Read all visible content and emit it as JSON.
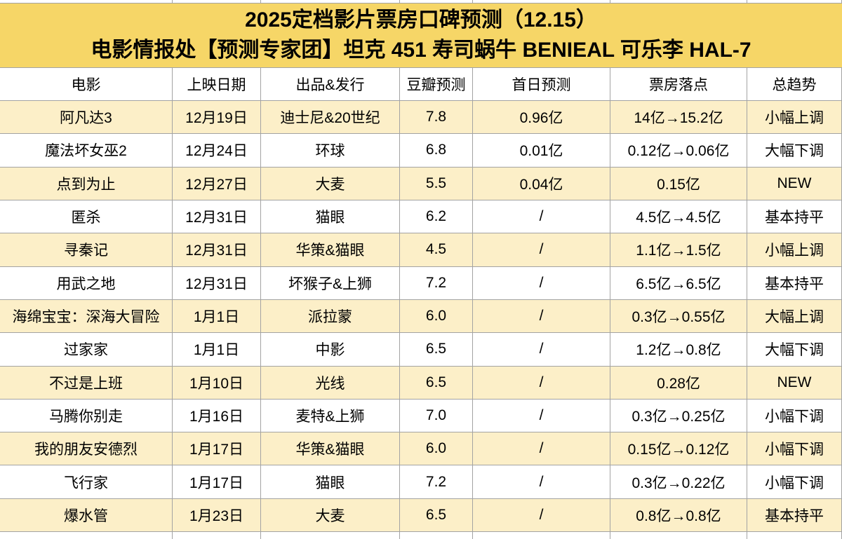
{
  "banner": {
    "title": "2025定档影片票房口碑预测（12.15）",
    "subtitle": "电影情报处【预测专家团】坦克 451 寿司蜗牛 BENIEAL 可乐李 HAL-7"
  },
  "table": {
    "columns": [
      "电影",
      "上映日期",
      "出品&发行",
      "豆瓣预测",
      "首日预测",
      "票房落点",
      "总趋势"
    ],
    "column_keys": [
      "movie",
      "release-date",
      "producer-distributor",
      "douban-forecast",
      "first-day-forecast",
      "box-office-landing",
      "overall-trend"
    ],
    "rows": [
      [
        "阿凡达3",
        "12月19日",
        "迪士尼&20世纪",
        "7.8",
        "0.96亿",
        "14亿→15.2亿",
        "小幅上调"
      ],
      [
        "魔法坏女巫2",
        "12月24日",
        "环球",
        "6.8",
        "0.01亿",
        "0.12亿→0.06亿",
        "大幅下调"
      ],
      [
        "点到为止",
        "12月27日",
        "大麦",
        "5.5",
        "0.04亿",
        "0.15亿",
        "NEW"
      ],
      [
        "匿杀",
        "12月31日",
        "猫眼",
        "6.2",
        "/",
        "4.5亿→4.5亿",
        "基本持平"
      ],
      [
        "寻秦记",
        "12月31日",
        "华策&猫眼",
        "4.5",
        "/",
        "1.1亿→1.5亿",
        "小幅上调"
      ],
      [
        "用武之地",
        "12月31日",
        "坏猴子&上狮",
        "7.2",
        "/",
        "6.5亿→6.5亿",
        "基本持平"
      ],
      [
        "海绵宝宝：深海大冒险",
        "1月1日",
        "派拉蒙",
        "6.0",
        "/",
        "0.3亿→0.55亿",
        "大幅上调"
      ],
      [
        "过家家",
        "1月1日",
        "中影",
        "6.5",
        "/",
        "1.2亿→0.8亿",
        "大幅下调"
      ],
      [
        "不过是上班",
        "1月10日",
        "光线",
        "6.5",
        "/",
        "0.28亿",
        "NEW"
      ],
      [
        "马腾你别走",
        "1月16日",
        "麦特&上狮",
        "7.0",
        "/",
        "0.3亿→0.25亿",
        "小幅下调"
      ],
      [
        "我的朋友安德烈",
        "1月17日",
        "华策&猫眼",
        "6.0",
        "/",
        "0.15亿→0.12亿",
        "小幅下调"
      ],
      [
        "飞行家",
        "1月17日",
        "猫眼",
        "7.2",
        "/",
        "0.3亿→0.22亿",
        "小幅下调"
      ],
      [
        "爆水管",
        "1月23日",
        "大麦",
        "6.5",
        "/",
        "0.8亿→0.8亿",
        "基本持平"
      ]
    ]
  },
  "colors": {
    "banner_bg": "#f6d667",
    "row_alt_bg": "#fcefc8",
    "row_bg": "#ffffff",
    "grid_line": "#a3a3a3",
    "text": "#000000"
  }
}
